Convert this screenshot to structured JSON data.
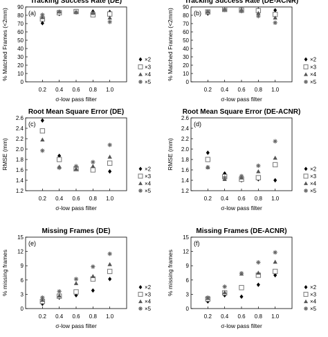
{
  "chart_data": [
    {
      "type": "scatter",
      "panel_label": "(a)",
      "title": "Tracking Success Rate (DE)",
      "xlabel": "σ-low pass filter",
      "ylabel": "% Matched Frames (<2mm)",
      "x": [
        0.2,
        0.4,
        0.6,
        0.8,
        1.0
      ],
      "xticks": [
        "0.2",
        "0.4",
        "0.6",
        "0.8",
        "1.0"
      ],
      "ylim": [
        0,
        90
      ],
      "yticks": [
        "0",
        "10",
        "20",
        "30",
        "40",
        "50",
        "60",
        "70",
        "80",
        "90"
      ],
      "series": [
        {
          "name": "×2",
          "marker": "diamond",
          "values": [
            70.5,
            81.5,
            85,
            84.5,
            84
          ]
        },
        {
          "name": "×3",
          "marker": "square",
          "values": [
            75.5,
            83,
            84.5,
            80.5,
            81.5
          ]
        },
        {
          "name": "×4",
          "marker": "triangle",
          "values": [
            77.5,
            84.5,
            84,
            83,
            77
          ]
        },
        {
          "name": "×5",
          "marker": "asterisk",
          "values": [
            80.5,
            84,
            83.5,
            82.5,
            72
          ]
        }
      ],
      "legend_position": "right"
    },
    {
      "type": "scatter",
      "panel_label": "(b)",
      "title": "Tracking Success Rate (DE-ACNR)",
      "xlabel": "σ-low pass filter",
      "ylabel": "% Matched Frames (<2mm)",
      "x": [
        0.2,
        0.4,
        0.6,
        0.8,
        1.0
      ],
      "xticks": [
        "0.2",
        "0.4",
        "0.6",
        "0.8",
        "1.0"
      ],
      "ylim": [
        0,
        90
      ],
      "yticks": [
        "0",
        "10",
        "20",
        "30",
        "40",
        "50",
        "60",
        "70",
        "80",
        "90"
      ],
      "series": [
        {
          "name": "×2",
          "marker": "diamond",
          "values": [
            82,
            86.5,
            87,
            87,
            86
          ]
        },
        {
          "name": "×3",
          "marker": "square",
          "values": [
            84,
            87,
            86,
            85.5,
            81
          ]
        },
        {
          "name": "×4",
          "marker": "triangle",
          "values": [
            84.5,
            87.5,
            86.5,
            82.5,
            77
          ]
        },
        {
          "name": "×5",
          "marker": "asterisk",
          "values": [
            84,
            86.5,
            85,
            79,
            71
          ]
        }
      ],
      "legend_position": "right"
    },
    {
      "type": "scatter",
      "panel_label": "(c)",
      "title": "Root Mean Square Error (DE)",
      "xlabel": "σ-low pass filter",
      "ylabel": "RMSE (mm)",
      "x": [
        0.2,
        0.4,
        0.6,
        0.8,
        1.0
      ],
      "xticks": [
        "0.2",
        "0.4",
        "0.6",
        "0.8",
        "1.0"
      ],
      "ylim": [
        1.2,
        2.6
      ],
      "yticks": [
        "1.2",
        "1.4",
        "1.6",
        "1.8",
        "2.0",
        "2.2",
        "2.4",
        "2.6"
      ],
      "series": [
        {
          "name": "×2",
          "marker": "diamond",
          "values": [
            2.55,
            1.87,
            1.65,
            1.62,
            1.57
          ]
        },
        {
          "name": "×3",
          "marker": "square",
          "values": [
            2.35,
            1.8,
            1.62,
            1.6,
            1.73
          ]
        },
        {
          "name": "×4",
          "marker": "triangle",
          "values": [
            2.18,
            1.66,
            1.62,
            1.67,
            1.85
          ]
        },
        {
          "name": "×5",
          "marker": "asterisk",
          "values": [
            1.97,
            1.64,
            1.67,
            1.75,
            2.08
          ]
        }
      ],
      "legend_position": "right"
    },
    {
      "type": "scatter",
      "panel_label": "(d)",
      "title": "Root Mean Square Error (DE-ACNR)",
      "xlabel": "σ-low pass filter",
      "ylabel": "RMSE (mm)",
      "x": [
        0.2,
        0.4,
        0.6,
        0.8,
        1.0
      ],
      "xticks": [
        "0.2",
        "0.4",
        "0.6",
        "0.8",
        "1.0"
      ],
      "ylim": [
        1.2,
        2.6
      ],
      "yticks": [
        "1.2",
        "1.4",
        "1.6",
        "1.8",
        "2.0",
        "2.2",
        "2.4",
        "2.6"
      ],
      "series": [
        {
          "name": "×2",
          "marker": "diamond",
          "values": [
            1.93,
            1.53,
            1.4,
            1.42,
            1.4
          ]
        },
        {
          "name": "×3",
          "marker": "square",
          "values": [
            1.8,
            1.47,
            1.42,
            1.45,
            1.7
          ]
        },
        {
          "name": "×4",
          "marker": "triangle",
          "values": [
            1.65,
            1.42,
            1.45,
            1.57,
            1.83
          ]
        },
        {
          "name": "×5",
          "marker": "asterisk",
          "values": [
            1.65,
            1.45,
            1.48,
            1.68,
            2.15
          ]
        }
      ],
      "legend_position": "right"
    },
    {
      "type": "scatter",
      "panel_label": "(e)",
      "title": "Missing Frames (DE)",
      "xlabel": "σ-low pass filter",
      "ylabel": "% missing frames",
      "x": [
        0.2,
        0.4,
        0.6,
        0.8,
        1.0
      ],
      "xticks": [
        "0.2",
        "0.4",
        "0.6",
        "0.8",
        "1.0"
      ],
      "ylim": [
        0,
        15
      ],
      "yticks": [
        "0",
        "3",
        "6",
        "9",
        "12",
        "15"
      ],
      "series": [
        {
          "name": "×2",
          "marker": "diamond",
          "values": [
            1.0,
            2.3,
            2.8,
            3.8,
            6.2
          ]
        },
        {
          "name": "×3",
          "marker": "square",
          "values": [
            1.5,
            2.6,
            3.5,
            6.2,
            7.8
          ]
        },
        {
          "name": "×4",
          "marker": "triangle",
          "values": [
            1.8,
            2.7,
            5.3,
            6.8,
            9.3
          ]
        },
        {
          "name": "×5",
          "marker": "asterisk",
          "values": [
            2.3,
            3.6,
            6.2,
            8.8,
            11.5
          ]
        }
      ],
      "legend_position": "right"
    },
    {
      "type": "scatter",
      "panel_label": "(f)",
      "title": "Missing Frames (DE-ACNR)",
      "xlabel": "σ-low pass filter",
      "ylabel": "% missing frames",
      "x": [
        0.2,
        0.4,
        0.6,
        0.8,
        1.0
      ],
      "xticks": [
        "0.2",
        "0.4",
        "0.6",
        "0.8",
        "1.0"
      ],
      "ylim": [
        0,
        15
      ],
      "yticks": [
        "0",
        "3",
        "6",
        "9",
        "12",
        "15"
      ],
      "series": [
        {
          "name": "×2",
          "marker": "diamond",
          "values": [
            1.5,
            2.8,
            2.5,
            5.0,
            7.0
          ]
        },
        {
          "name": "×3",
          "marker": "square",
          "values": [
            2.0,
            3.3,
            4.4,
            7.0,
            7.8
          ]
        },
        {
          "name": "×4",
          "marker": "triangle",
          "values": [
            2.2,
            3.4,
            7.3,
            7.5,
            9.8
          ]
        },
        {
          "name": "×5",
          "marker": "asterisk",
          "values": [
            2.3,
            4.6,
            7.4,
            9.7,
            11.8
          ]
        }
      ],
      "legend_position": "right"
    }
  ]
}
